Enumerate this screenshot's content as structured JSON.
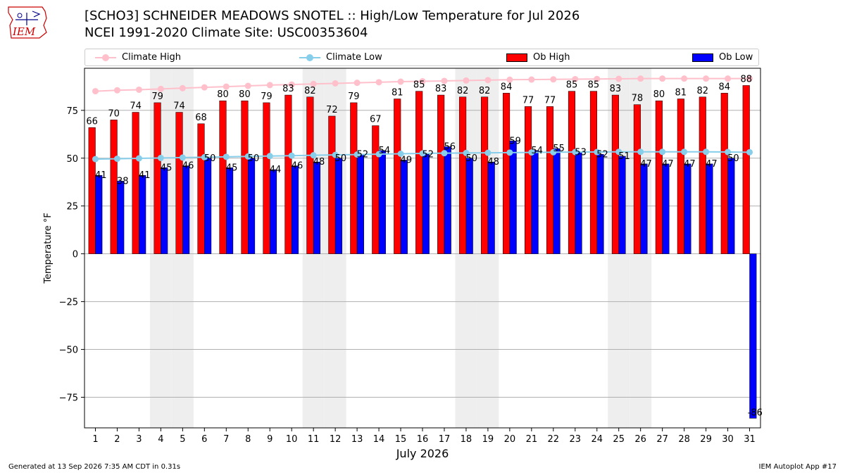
{
  "header": {
    "title_line1": "[SCHO3] SCHNEIDER MEADOWS SNOTEL :: High/Low Temperature for Jul 2026",
    "title_line2": "NCEI 1991-2020 Climate Site: USC00353604",
    "logo_text": "IEM"
  },
  "legend": {
    "climate_high": "Climate High",
    "climate_low": "Climate Low",
    "ob_high": "Ob High",
    "ob_low": "Ob Low"
  },
  "footer": {
    "generated": "Generated at 13 Sep 2026 7:35 AM CDT in 0.31s",
    "app": "IEM Autoplot App #17"
  },
  "colors": {
    "ob_high": "#ff0000",
    "ob_low": "#0000ff",
    "climate_high": "#ffc0cb",
    "climate_low": "#87ceeb",
    "weekend_shade": "#eeeeee",
    "grid": "#b0b0b0"
  },
  "chart_data": {
    "type": "bar",
    "xlabel": "July 2026",
    "ylabel": "Temperature °F",
    "ylim": [
      -91,
      97
    ],
    "yticks": [
      -75,
      -50,
      -25,
      0,
      25,
      50,
      75
    ],
    "ytick_labels": [
      "−75",
      "−50",
      "−25",
      "0",
      "25",
      "50",
      "75"
    ],
    "grid": "horizontal",
    "legend_position": "top",
    "categories": [
      "1",
      "2",
      "3",
      "4",
      "5",
      "6",
      "7",
      "8",
      "9",
      "10",
      "11",
      "12",
      "13",
      "14",
      "15",
      "16",
      "17",
      "18",
      "19",
      "20",
      "21",
      "22",
      "23",
      "24",
      "25",
      "26",
      "27",
      "28",
      "29",
      "30",
      "31"
    ],
    "shaded_days": [
      4,
      5,
      11,
      12,
      18,
      19,
      25,
      26
    ],
    "series": [
      {
        "name": "Ob High",
        "kind": "bar",
        "values": [
          66,
          70,
          74,
          79,
          74,
          68,
          80,
          80,
          79,
          83,
          82,
          72,
          79,
          67,
          81,
          85,
          83,
          82,
          82,
          84,
          77,
          77,
          85,
          85,
          83,
          78,
          80,
          81,
          82,
          84,
          88
        ]
      },
      {
        "name": "Ob Low",
        "kind": "bar",
        "values": [
          41,
          38,
          41,
          45,
          46,
          50,
          45,
          50,
          44,
          46,
          48,
          50,
          52,
          54,
          49,
          52,
          56,
          50,
          48,
          59,
          54,
          55,
          53,
          52,
          51,
          47,
          47,
          47,
          47,
          50,
          -86
        ]
      },
      {
        "name": "Climate High",
        "kind": "line",
        "values": [
          85,
          85.5,
          85.8,
          86.2,
          86.6,
          87,
          87.4,
          87.8,
          88.2,
          88.5,
          88.8,
          89.1,
          89.4,
          89.7,
          90,
          90.2,
          90.4,
          90.6,
          90.8,
          91,
          91.1,
          91.2,
          91.3,
          91.4,
          91.5,
          91.6,
          91.6,
          91.6,
          91.6,
          91.6,
          91.6
        ]
      },
      {
        "name": "Climate Low",
        "kind": "line",
        "values": [
          49.5,
          49.7,
          49.9,
          50.1,
          50.3,
          50.5,
          50.7,
          50.9,
          51.1,
          51.3,
          51.5,
          51.7,
          51.9,
          52.1,
          52.3,
          52.5,
          52.6,
          52.7,
          52.8,
          52.9,
          53,
          53.1,
          53.2,
          53.2,
          53.3,
          53.3,
          53.3,
          53.3,
          53.3,
          53.2,
          53.1
        ]
      }
    ]
  }
}
